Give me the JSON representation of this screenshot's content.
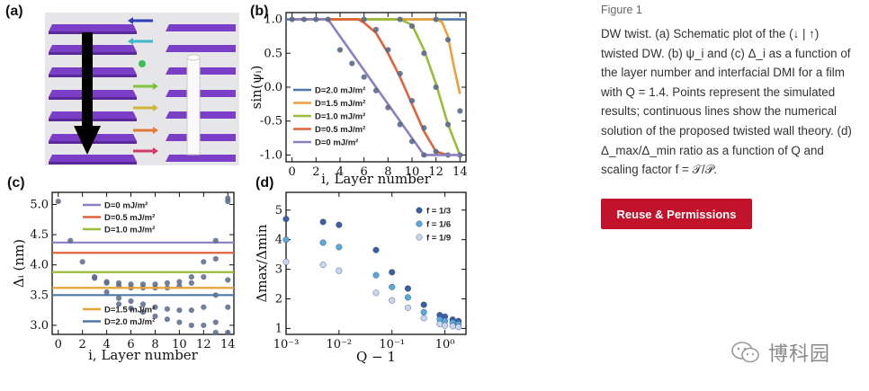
{
  "caption": {
    "figure_label": "Figure 1",
    "text": "DW twist. (a) Schematic plot of the (↓ | ↑) twisted DW. (b) ψ_i and (c) Δ_i as a function of the layer number and interfacial DMI for a film with Q = 1.4. Points represent the simulated results; continuous lines show the numerical solution of the proposed twisted wall theory. (d) Δ_max/Δ_min ratio as a function of Q and scaling factor f = 𝒯/𝒫."
  },
  "reuse_button": "Reuse & Permissions",
  "watermark": "博科园",
  "panels": {
    "a": "(a)",
    "b": "(b)",
    "c": "(c)",
    "d": "(d)"
  },
  "chart_data": [
    {
      "panel": "(b)",
      "type": "line",
      "xlabel": "i, Layer number",
      "ylabel": "sin(ψ_i)",
      "xlim": [
        -0.5,
        14.5
      ],
      "ylim": [
        -1.1,
        1.1
      ],
      "xticks": [
        0,
        2,
        4,
        6,
        8,
        10,
        12,
        14
      ],
      "yticks": [
        -1.0,
        -0.5,
        0.0,
        0.5,
        1.0
      ],
      "legend_position": "bottom-left",
      "series": [
        {
          "name": "D=2.0 mJ/m²",
          "color": "#4e79a7",
          "x": [
            -0.5,
            14.5
          ],
          "y": [
            1,
            1
          ],
          "points_y": []
        },
        {
          "name": "D=1.5 mJ/m²",
          "color": "#e8a23a",
          "x": [
            0,
            12,
            12.5,
            13,
            13.5,
            14
          ],
          "y": [
            1,
            1,
            0.96,
            0.75,
            0.3,
            -0.1
          ],
          "px": [
            12,
            13,
            14
          ],
          "py": [
            1.0,
            0.7,
            -0.35
          ]
        },
        {
          "name": "D=1.0 mJ/m²",
          "color": "#9bbb3a",
          "x": [
            0,
            9,
            10,
            11,
            12,
            13,
            14
          ],
          "y": [
            1,
            1,
            0.92,
            0.55,
            0.05,
            -0.55,
            -1.0
          ],
          "px": [
            9,
            10,
            11,
            12,
            13,
            14
          ],
          "py": [
            1.0,
            0.9,
            0.5,
            0.0,
            -0.55,
            -1.0
          ]
        },
        {
          "name": "D=0.5 mJ/m²",
          "color": "#e0623a",
          "x": [
            0,
            5.5,
            6,
            7,
            8,
            9,
            10,
            11,
            12,
            13
          ],
          "y": [
            1,
            1,
            0.95,
            0.8,
            0.5,
            0.15,
            -0.25,
            -0.65,
            -0.95,
            -1.0
          ],
          "px": [
            6,
            7,
            8,
            9,
            10,
            11,
            12,
            13
          ],
          "py": [
            1.0,
            0.85,
            0.55,
            0.2,
            -0.2,
            -0.6,
            -0.95,
            -1.0
          ]
        },
        {
          "name": "D=0 mJ/m²",
          "color": "#8a7fc1",
          "x": [
            0,
            3,
            11,
            14
          ],
          "y": [
            1,
            1,
            -1,
            -1
          ],
          "px": [
            3,
            4,
            5,
            6,
            7,
            8,
            9,
            10,
            11
          ],
          "py": [
            1.0,
            0.55,
            0.35,
            0.15,
            -0.05,
            -0.3,
            -0.55,
            -0.8,
            -1.0
          ]
        },
        {
          "name": "",
          "color": "#5b6a8a",
          "px": [
            0,
            1,
            2
          ],
          "py": [
            1.0,
            1.0,
            1.0
          ]
        }
      ]
    },
    {
      "panel": "(c)",
      "type": "scatter",
      "xlabel": "i, Layer number",
      "ylabel": "Δ_i (nm)",
      "xlim": [
        -0.5,
        14.5
      ],
      "ylim": [
        2.85,
        5.2
      ],
      "xticks": [
        0,
        2,
        4,
        6,
        8,
        10,
        12,
        14
      ],
      "yticks": [
        3.0,
        3.5,
        4.0,
        4.5,
        5.0
      ],
      "legend_position": "top-left / bottom-left",
      "series": [
        {
          "name": "D=0 mJ/m²",
          "color": "#8a7fc1",
          "hline": 4.37,
          "px": [
            0,
            1,
            2,
            3,
            4,
            5,
            6,
            7,
            8,
            9,
            10,
            11,
            12,
            13,
            14
          ],
          "py": [
            5.05,
            4.4,
            4.05,
            3.8,
            3.72,
            3.7,
            3.68,
            3.68,
            3.68,
            3.7,
            3.72,
            3.8,
            4.05,
            4.4,
            5.05
          ]
        },
        {
          "name": "D=0.5 mJ/m²",
          "color": "#e0623a",
          "hline": 4.2,
          "px": [
            3,
            4,
            5,
            6,
            7,
            8,
            9,
            10,
            11,
            12,
            13,
            14
          ],
          "py": [
            3.78,
            3.7,
            3.65,
            3.62,
            3.62,
            3.62,
            3.62,
            3.65,
            3.7,
            3.8,
            4.1,
            5.1
          ]
        },
        {
          "name": "D=1.0 mJ/m²",
          "color": "#9bbb3a",
          "hline": 3.88,
          "px": [
            4,
            5,
            6,
            7,
            8,
            9,
            10,
            11,
            12,
            13,
            14
          ],
          "py": [
            3.55,
            3.45,
            3.4,
            3.35,
            3.3,
            3.27,
            3.25,
            3.25,
            3.3,
            3.5,
            3.75
          ]
        },
        {
          "name": "D=1.5 mJ/m²",
          "color": "#e8a23a",
          "hline": 3.62,
          "px": [
            5,
            6,
            7,
            8,
            9,
            10,
            11,
            12,
            13,
            14
          ],
          "py": [
            3.35,
            3.28,
            3.22,
            3.15,
            3.1,
            3.05,
            3.0,
            3.0,
            3.05,
            3.3
          ]
        },
        {
          "name": "D=2.0 mJ/m²",
          "color": "#4e79a7",
          "hline": 3.5,
          "px": [
            13,
            14
          ],
          "py": [
            2.88,
            2.88
          ]
        }
      ]
    },
    {
      "panel": "(d)",
      "type": "scatter",
      "xlabel": "Q − 1",
      "ylabel": "Δ_max/Δ_min",
      "xscale": "log",
      "xlim": [
        0.001,
        2.5
      ],
      "ylim": [
        0.8,
        5.6
      ],
      "xticks": [
        "10⁻³",
        "10⁻²",
        "10⁻¹",
        "10⁰"
      ],
      "yticks": [
        1,
        2,
        3,
        4,
        5
      ],
      "legend_position": "top-right",
      "series": [
        {
          "name": "f = 1/3",
          "color": "#3b5fa0",
          "x": [
            0.001,
            0.005,
            0.01,
            0.05,
            0.1,
            0.2,
            0.4,
            0.8,
            1.0,
            1.4,
            1.8
          ],
          "y": [
            4.7,
            4.6,
            4.5,
            3.65,
            2.9,
            2.35,
            1.8,
            1.45,
            1.4,
            1.3,
            1.25
          ]
        },
        {
          "name": "f = 1/6",
          "color": "#5aa9d8",
          "x": [
            0.001,
            0.005,
            0.01,
            0.05,
            0.1,
            0.2,
            0.4,
            0.8,
            1.0,
            1.4,
            1.8
          ],
          "y": [
            4.0,
            3.9,
            3.75,
            2.8,
            2.4,
            2.05,
            1.55,
            1.3,
            1.25,
            1.2,
            1.15
          ]
        },
        {
          "name": "f = 1/9",
          "color": "#c9d6ef",
          "x": [
            0.001,
            0.005,
            0.01,
            0.05,
            0.1,
            0.2,
            0.4,
            0.8,
            1.0,
            1.4,
            1.8
          ],
          "y": [
            3.25,
            3.15,
            2.95,
            2.2,
            1.95,
            1.7,
            1.35,
            1.15,
            1.1,
            1.08,
            1.05
          ]
        }
      ]
    }
  ]
}
